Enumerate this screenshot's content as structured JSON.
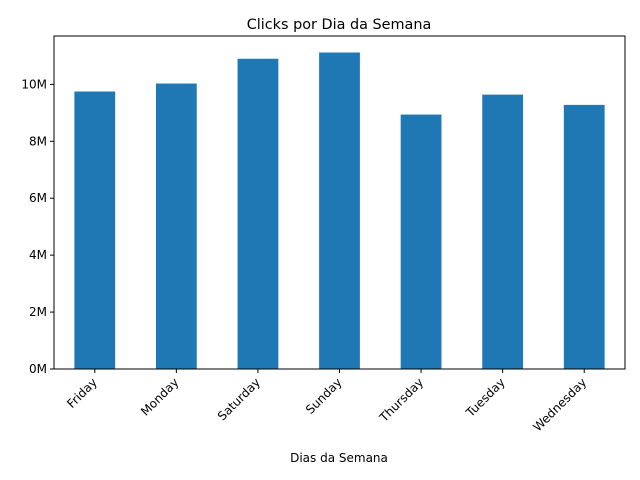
{
  "chart_data": {
    "type": "bar",
    "title": "Clicks por Dia da Semana",
    "xlabel": "Dias da Semana",
    "ylabel": "",
    "categories": [
      "Friday",
      "Monday",
      "Saturday",
      "Sunday",
      "Thursday",
      "Tuesday",
      "Wednesday"
    ],
    "values": [
      9750000,
      10030000,
      10900000,
      11120000,
      8940000,
      9640000,
      9280000
    ],
    "ylim": [
      0,
      11700000
    ],
    "yticks": [
      0,
      2000000,
      4000000,
      6000000,
      8000000,
      10000000
    ],
    "ytick_labels": [
      "0M",
      "2M",
      "4M",
      "6M",
      "8M",
      "10M"
    ],
    "bar_color": "#1f77b4",
    "grid": false,
    "legend": "none"
  }
}
